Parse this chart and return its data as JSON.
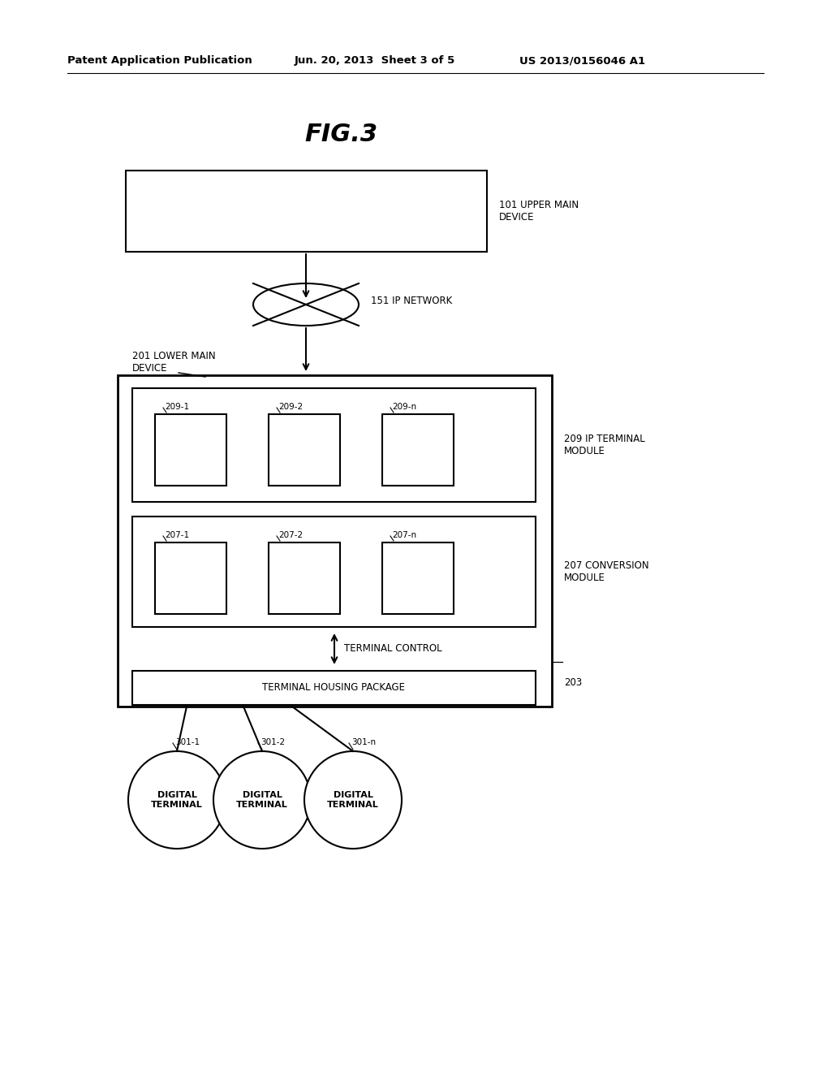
{
  "title": "FIG.3",
  "header_left": "Patent Application Publication",
  "header_center": "Jun. 20, 2013  Sheet 3 of 5",
  "header_right": "US 2013/0156046 A1",
  "upper_main_device_label": "101 UPPER MAIN\nDEVICE",
  "ip_network_label": "151 IP NETWORK",
  "lower_main_device_label": "201 LOWER MAIN\nDEVICE",
  "ip_terminal_module_label": "209 IP TERMINAL\nMODULE",
  "conversion_module_label": "207 CONVERSION\nMODULE",
  "terminal_control_label": "TERMINAL CONTROL",
  "terminal_housing_label": "TERMINAL HOUSING PACKAGE",
  "terminal_housing_num": "203",
  "digital_terminal_labels": [
    "DIGITAL\nTERMINAL",
    "DIGITAL\nTERMINAL",
    "DIGITAL\nTERMINAL"
  ],
  "digital_terminal_nums": [
    "301-1",
    "301-2",
    "301-n"
  ],
  "ip_module_nums": [
    "209-1",
    "209-2",
    "209-n"
  ],
  "conv_module_nums": [
    "207-1",
    "207-2",
    "207-n"
  ],
  "bg_color": "#ffffff",
  "fg_color": "#000000",
  "line_color": "#000000"
}
